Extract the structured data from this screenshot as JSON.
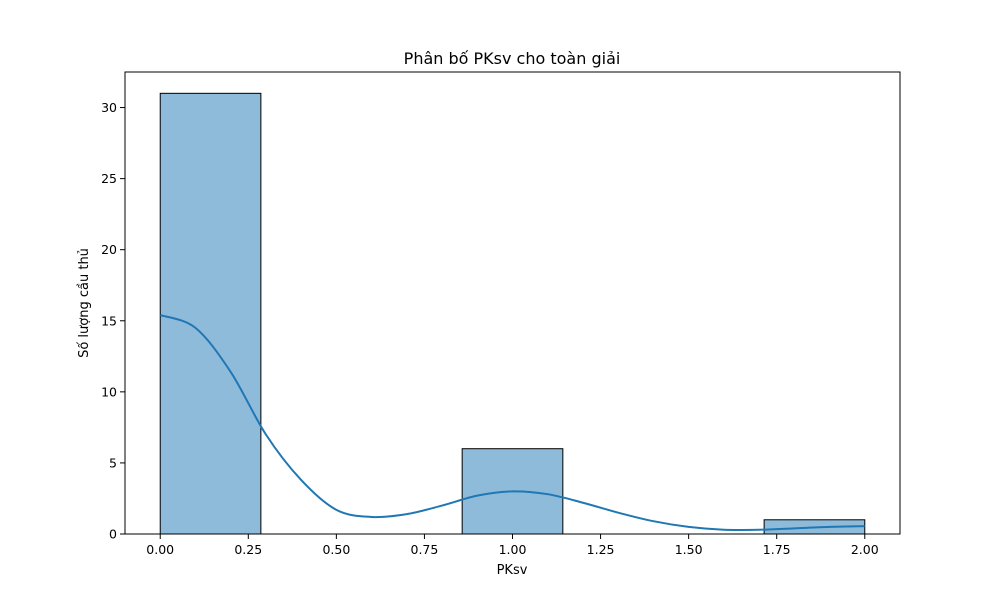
{
  "chart_data": {
    "type": "bar",
    "title": "Phân bố PKsv cho toàn giải",
    "xlabel": "PKsv",
    "ylabel": "Số lượng cầu thủ",
    "xlim": [
      -0.1,
      2.1
    ],
    "ylim": [
      0,
      32.5
    ],
    "x_ticks": [
      "0.00",
      "0.25",
      "0.50",
      "0.75",
      "1.00",
      "1.25",
      "1.50",
      "1.75",
      "2.00"
    ],
    "x_tick_values": [
      0,
      0.25,
      0.5,
      0.75,
      1.0,
      1.25,
      1.5,
      1.75,
      2.0
    ],
    "y_ticks": [
      "0",
      "5",
      "10",
      "15",
      "20",
      "25",
      "30"
    ],
    "y_tick_values": [
      0,
      5,
      10,
      15,
      20,
      25,
      30
    ],
    "bins": [
      {
        "x0": 0.0,
        "x1": 0.2857,
        "count": 31
      },
      {
        "x0": 0.2857,
        "x1": 0.5714,
        "count": 0
      },
      {
        "x0": 0.5714,
        "x1": 0.8571,
        "count": 0
      },
      {
        "x0": 0.8571,
        "x1": 1.1429,
        "count": 6
      },
      {
        "x0": 1.1429,
        "x1": 1.4286,
        "count": 0
      },
      {
        "x0": 1.4286,
        "x1": 1.7143,
        "count": 0
      },
      {
        "x0": 1.7143,
        "x1": 2.0,
        "count": 1
      }
    ],
    "kde": {
      "x": [
        0.0,
        0.1,
        0.2,
        0.3,
        0.4,
        0.5,
        0.6,
        0.7,
        0.8,
        0.9,
        1.0,
        1.1,
        1.2,
        1.3,
        1.4,
        1.5,
        1.6,
        1.7,
        1.8,
        1.9,
        2.0
      ],
      "y": [
        15.4,
        14.5,
        11.4,
        7.0,
        3.8,
        1.7,
        1.2,
        1.4,
        2.0,
        2.7,
        3.0,
        2.8,
        2.2,
        1.5,
        0.9,
        0.5,
        0.3,
        0.3,
        0.4,
        0.5,
        0.55
      ]
    },
    "grid": false,
    "colors": {
      "bar_fill": "#8fbbda",
      "bar_edge": "#000000",
      "kde_line": "#1f77b4"
    }
  }
}
